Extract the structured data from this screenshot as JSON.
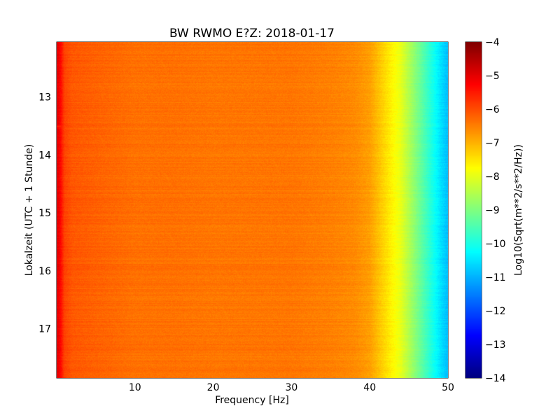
{
  "chart_data": {
    "type": "heatmap",
    "title": "BW RWMO E?Z: 2018-01-17",
    "xlabel": "Frequency [Hz]",
    "ylabel": "Lokalzeit (UTC + 1 Stunde)",
    "xlim": [
      0,
      50
    ],
    "ylim": [
      12.05,
      17.85
    ],
    "x_ticks": [
      10,
      20,
      30,
      40,
      50
    ],
    "y_ticks": [
      13,
      14,
      15,
      16,
      17
    ],
    "y_inverted": true,
    "grid": true,
    "colormap": "jet",
    "colorbar": {
      "label": "Log10(Sqrt(m**2/s**2/Hz))",
      "range": [
        -14,
        -4
      ],
      "ticks": [
        -4,
        -5,
        -6,
        -7,
        -8,
        -9,
        -10,
        -11,
        -12,
        -13,
        -14
      ]
    },
    "spectral_profile": {
      "frequency_hz": [
        0,
        0.5,
        1,
        2,
        5,
        10,
        15,
        20,
        25,
        30,
        35,
        38,
        40,
        41,
        42,
        43,
        44,
        45,
        46,
        47,
        48,
        49,
        50
      ],
      "log10_amplitude": [
        -4.9,
        -5.3,
        -5.9,
        -6.1,
        -6.2,
        -6.35,
        -6.35,
        -6.4,
        -6.4,
        -6.4,
        -6.5,
        -6.6,
        -6.8,
        -7.1,
        -7.4,
        -7.7,
        -8.0,
        -8.5,
        -9.0,
        -9.5,
        -10.0,
        -10.5,
        -10.9
      ]
    },
    "strong_bands": [
      {
        "time": 12.88,
        "freq_range": [
          10,
          15
        ],
        "log10_amplitude": -5.5
      },
      {
        "time": 13.28,
        "freq_range": [
          10,
          40
        ],
        "log10_amplitude": -5.6
      },
      {
        "time": 13.5,
        "freq_range": [
          0,
          40
        ],
        "log10_amplitude": -5.6
      },
      {
        "time": 14.6,
        "freq_range": [
          2,
          40
        ],
        "log10_amplitude": -5.6
      },
      {
        "time": 15.2,
        "freq_range": [
          2,
          40
        ],
        "log10_amplitude": -5.6
      },
      {
        "time": 15.78,
        "freq_range": [
          3,
          43
        ],
        "log10_amplitude": -5.4
      },
      {
        "time": 16.55,
        "freq_range": [
          8,
          40
        ],
        "log10_amplitude": -5.7
      },
      {
        "time": 17.6,
        "freq_range": [
          8,
          40
        ],
        "log10_amplitude": -5.7
      }
    ]
  }
}
